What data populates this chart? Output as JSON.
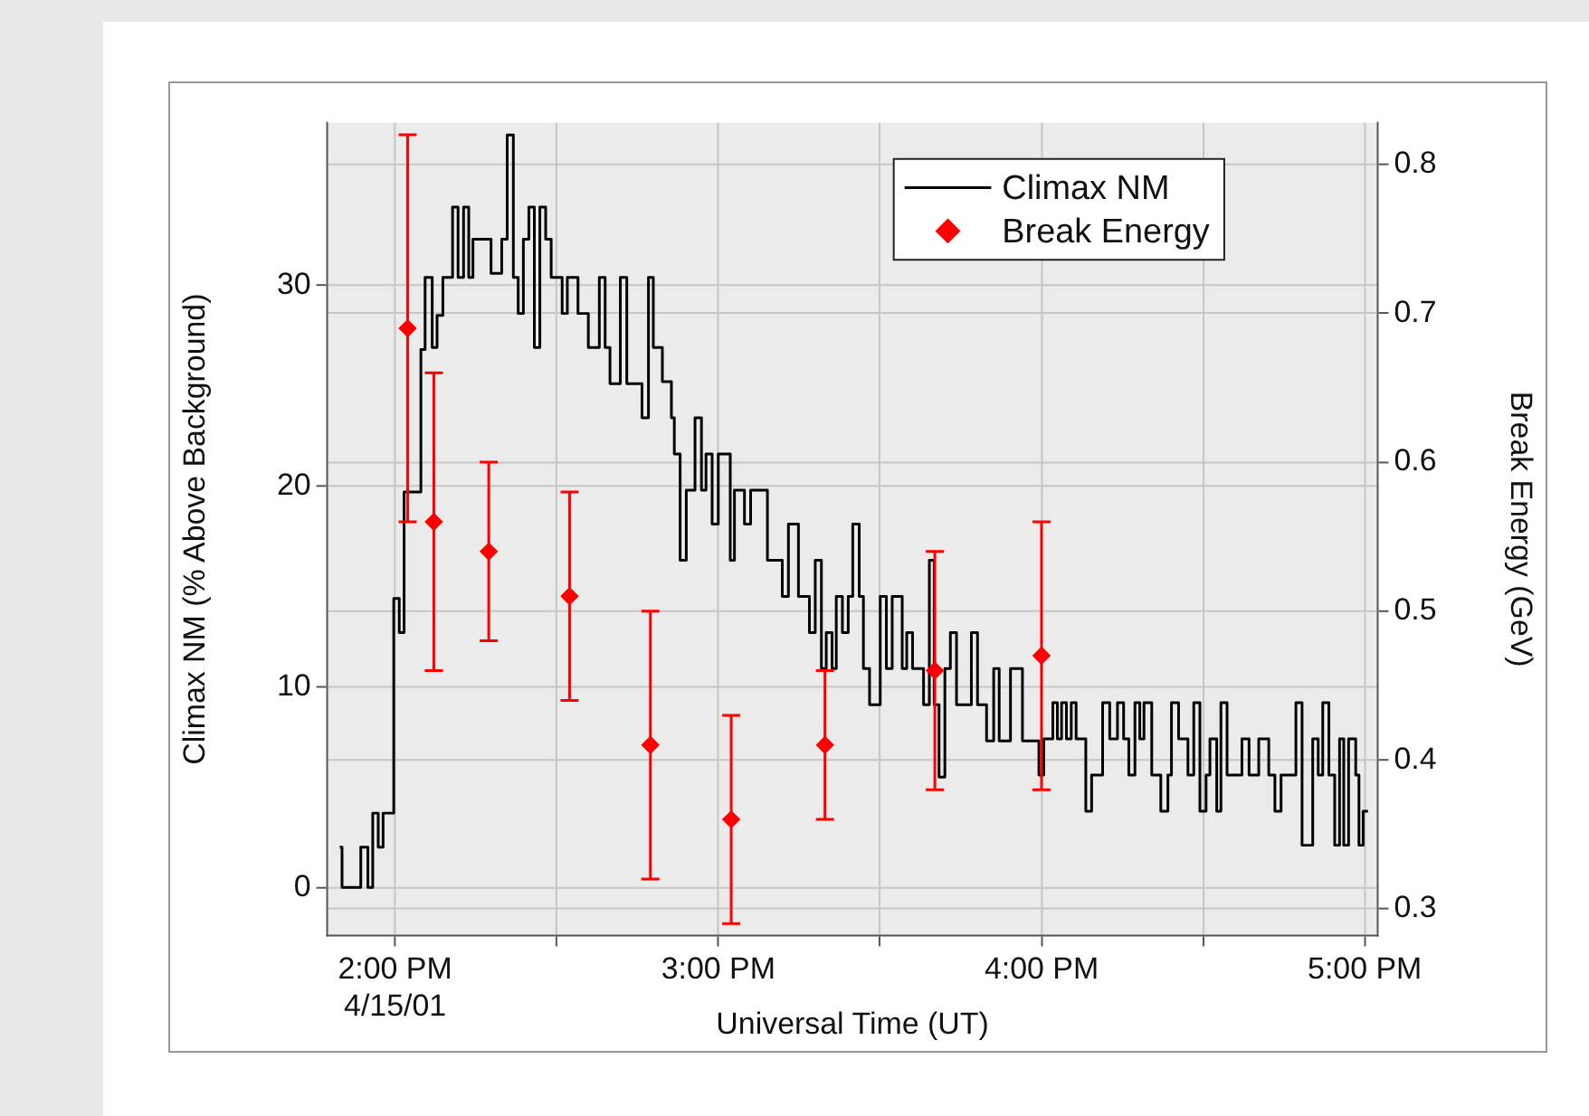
{
  "chart_data": {
    "type": "step",
    "xlabel": "Universal Time (UT)",
    "ylabel": "Climax NM (% Above Background)",
    "y2label": "Break Energy (GeV)",
    "xlim": [
      13.79,
      17.04
    ],
    "xticks": [
      {
        "value": 14,
        "label": "2:00 PM\n4/15/01"
      },
      {
        "value": 14.5,
        "label": null
      },
      {
        "value": 15,
        "label": "3:00 PM"
      },
      {
        "value": 15.5,
        "label": null
      },
      {
        "value": 16,
        "label": "4:00 PM"
      },
      {
        "value": 16.5,
        "label": null
      },
      {
        "value": 17,
        "label": "5:00 PM"
      }
    ],
    "ylim": [
      -2.4,
      38.1
    ],
    "yticks": [
      0,
      10,
      20,
      30
    ],
    "y2lim": [
      0.282,
      0.828
    ],
    "y2ticks": [
      0.3,
      0.4,
      0.5,
      0.6,
      0.7,
      0.8
    ],
    "grid": true,
    "legend": "top right",
    "series": [
      {
        "name": "Climax NM",
        "color": "#000000",
        "marker": "none",
        "x": [
          13.829,
          13.836,
          13.894,
          13.916,
          13.931,
          13.948,
          13.963,
          13.996,
          14.013,
          14.028,
          14.08,
          14.093,
          14.115,
          14.13,
          14.148,
          14.178,
          14.195,
          14.212,
          14.228,
          14.241,
          14.297,
          14.33,
          14.347,
          14.366,
          14.381,
          14.397,
          14.414,
          14.431,
          14.448,
          14.466,
          14.483,
          14.517,
          14.533,
          14.566,
          14.598,
          14.632,
          14.65,
          14.665,
          14.697,
          14.717,
          14.764,
          14.784,
          14.799,
          14.827,
          14.855,
          14.864,
          14.882,
          14.901,
          14.928,
          14.948,
          14.962,
          14.981,
          15.0,
          15.037,
          15.05,
          15.081,
          15.1,
          15.152,
          15.198,
          15.217,
          15.248,
          15.282,
          15.3,
          15.319,
          15.334,
          15.352,
          15.365,
          15.384,
          15.402,
          15.416,
          15.436,
          15.449,
          15.468,
          15.501,
          15.52,
          15.538,
          15.569,
          15.583,
          15.601,
          15.635,
          15.653,
          15.668,
          15.683,
          15.701,
          15.718,
          15.737,
          15.783,
          15.802,
          15.83,
          15.852,
          15.869,
          15.904,
          15.941,
          15.992,
          16.007,
          16.035,
          16.049,
          16.062,
          16.077,
          16.092,
          16.107,
          16.137,
          16.155,
          16.189,
          16.211,
          16.235,
          16.254,
          16.27,
          16.289,
          16.304,
          16.317,
          16.341,
          16.369,
          16.391,
          16.402,
          16.424,
          16.453,
          16.471,
          16.49,
          16.509,
          16.521,
          16.542,
          16.555,
          16.574,
          16.62,
          16.642,
          16.672,
          16.703,
          16.722,
          16.741,
          16.787,
          16.806,
          16.839,
          16.856,
          16.87,
          16.889,
          16.907,
          16.922,
          16.935,
          16.95,
          16.972,
          16.982,
          16.995,
          17.01
        ],
        "values": [
          2,
          0,
          2,
          0,
          3.7,
          2,
          3.7,
          14.4,
          12.7,
          19.7,
          26.8,
          30.4,
          26.9,
          28.5,
          30.4,
          33.9,
          30.4,
          33.9,
          30.4,
          32.3,
          30.6,
          32.3,
          37.5,
          30.4,
          28.6,
          32.3,
          33.9,
          26.9,
          33.9,
          32.3,
          30.4,
          28.6,
          30.4,
          28.6,
          26.9,
          30.4,
          26.9,
          25.1,
          30.4,
          25.1,
          23.4,
          30.4,
          26.9,
          25.2,
          23.4,
          21.6,
          16.3,
          19.8,
          23.4,
          19.8,
          21.6,
          18.1,
          21.6,
          16.3,
          19.8,
          18.1,
          19.8,
          16.3,
          14.5,
          18.1,
          14.5,
          12.7,
          16.3,
          10.9,
          12.7,
          10.9,
          14.5,
          12.7,
          14.5,
          18.1,
          14.5,
          10.9,
          9.1,
          14.5,
          10.9,
          14.5,
          10.9,
          12.7,
          10.9,
          9.1,
          16.3,
          9.1,
          5.5,
          10.9,
          12.7,
          9.1,
          12.7,
          9.1,
          7.3,
          10.9,
          7.3,
          10.9,
          7.3,
          5.6,
          7.4,
          9.2,
          7.4,
          9.2,
          7.4,
          9.2,
          7.4,
          3.8,
          5.6,
          9.2,
          7.4,
          9.2,
          7.4,
          5.6,
          9.2,
          7.4,
          9.2,
          5.6,
          3.8,
          5.6,
          9.2,
          7.4,
          5.6,
          9.2,
          3.8,
          5.6,
          7.4,
          3.8,
          9.2,
          5.6,
          7.4,
          5.6,
          7.4,
          5.6,
          3.8,
          5.6,
          9.2,
          2.1,
          7.4,
          5.6,
          9.2,
          5.6,
          2.1,
          7.4,
          2.1,
          7.4,
          5.6,
          2.1,
          3.8,
          3.8
        ]
      },
      {
        "name": "Break Energy",
        "type": "scatter",
        "axis": "y2",
        "color": "#ff0000",
        "marker": "diamond",
        "x": [
          14.039,
          14.12,
          14.29,
          14.54,
          14.79,
          15.04,
          15.33,
          15.67,
          16.0
        ],
        "values": [
          0.69,
          0.56,
          0.54,
          0.51,
          0.41,
          0.36,
          0.41,
          0.46,
          0.47
        ],
        "errors": [
          [
            0.56,
            0.82
          ],
          [
            0.46,
            0.66
          ],
          [
            0.48,
            0.6
          ],
          [
            0.44,
            0.58
          ],
          [
            0.32,
            0.5
          ],
          [
            0.29,
            0.43
          ],
          [
            0.36,
            0.46
          ],
          [
            0.38,
            0.54
          ],
          [
            0.38,
            0.56
          ]
        ]
      }
    ]
  }
}
